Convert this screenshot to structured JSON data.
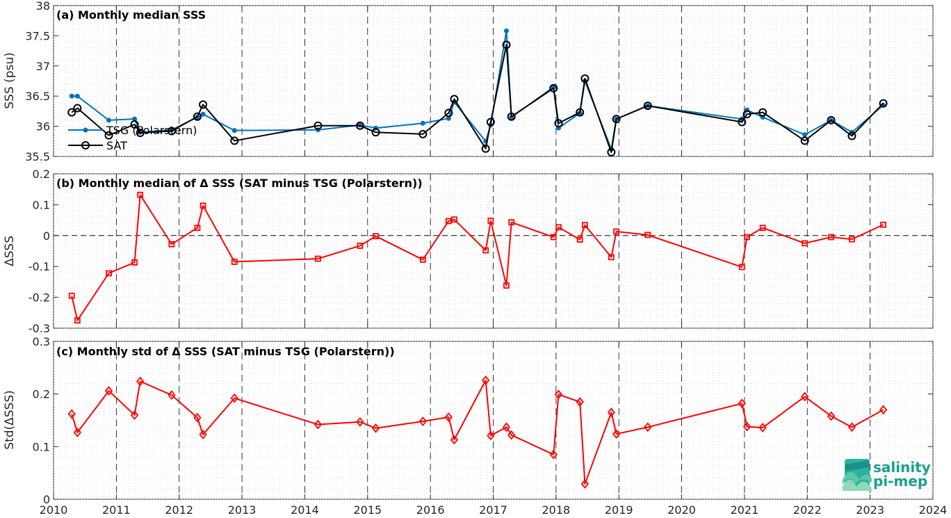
{
  "chart_data": [
    {
      "type": "line",
      "title": "(a) Monthly median SSS",
      "ylabel": "SSS (psu)",
      "xlim": [
        2010,
        2024
      ],
      "ylim": [
        35.5,
        38
      ],
      "yticks": [
        "35.5",
        "36",
        "36.5",
        "37",
        "37.5",
        "38"
      ],
      "grid": "dotted minor grid, dashed vertical year lines",
      "legend_placement": "left",
      "series": [
        {
          "name": "TSG (Polarstern)",
          "color": "#0072BD",
          "marker": "filled-dot",
          "x": [
            2010.29,
            2010.38,
            2010.88,
            2011.29,
            2011.38,
            2011.88,
            2012.29,
            2012.38,
            2012.88,
            2014.21,
            2014.88,
            2015.13,
            2015.88,
            2016.29,
            2016.38,
            2016.88,
            2016.96,
            2017.21,
            2017.29,
            2017.96,
            2018.04,
            2018.38,
            2018.46,
            2018.88,
            2018.96,
            2019.46,
            2020.96,
            2021.04,
            2021.29,
            2021.96,
            2022.38,
            2022.71,
            2023.21
          ],
          "values": [
            36.5,
            36.5,
            36.1,
            36.12,
            35.9,
            35.94,
            36.15,
            36.2,
            35.93,
            35.94,
            36.02,
            35.97,
            36.05,
            36.13,
            36.4,
            35.75,
            36.02,
            37.58,
            36.15,
            36.65,
            35.97,
            36.22,
            36.75,
            35.62,
            36.12,
            36.34,
            36.12,
            36.27,
            36.15,
            35.86,
            36.1,
            35.9,
            36.35
          ]
        },
        {
          "name": "SAT",
          "color": "#000000",
          "marker": "open-circle",
          "x": [
            2010.29,
            2010.38,
            2010.88,
            2011.29,
            2011.38,
            2011.88,
            2012.29,
            2012.38,
            2012.88,
            2014.21,
            2014.88,
            2015.13,
            2015.88,
            2016.29,
            2016.38,
            2016.88,
            2016.96,
            2017.21,
            2017.29,
            2017.96,
            2018.04,
            2018.38,
            2018.46,
            2018.88,
            2018.96,
            2019.46,
            2020.96,
            2021.04,
            2021.29,
            2021.96,
            2022.38,
            2022.71,
            2023.21
          ],
          "values": [
            36.23,
            36.3,
            35.85,
            36.03,
            35.89,
            35.92,
            36.16,
            36.36,
            35.76,
            36.01,
            36.01,
            35.9,
            35.87,
            36.22,
            36.45,
            35.63,
            36.07,
            37.35,
            36.16,
            36.63,
            36.05,
            36.23,
            36.79,
            35.57,
            36.12,
            36.34,
            36.07,
            36.2,
            36.23,
            35.76,
            36.1,
            35.84,
            36.38
          ]
        }
      ]
    },
    {
      "type": "line",
      "title": "(b) Monthly median of Δ SSS (SAT minus TSG (Polarstern))",
      "ylabel": "ΔSSS",
      "xlim": [
        2010,
        2024
      ],
      "ylim": [
        -0.3,
        0.2
      ],
      "yticks": [
        "-0.3",
        "-0.2",
        "-0.1",
        "0",
        "0.1",
        "0.2"
      ],
      "reference_line": 0,
      "series": [
        {
          "color": "#FF0000",
          "marker": "open-square",
          "x": [
            2010.29,
            2010.38,
            2010.88,
            2011.29,
            2011.38,
            2011.88,
            2012.29,
            2012.38,
            2012.88,
            2014.21,
            2014.88,
            2015.13,
            2015.88,
            2016.29,
            2016.38,
            2016.88,
            2016.96,
            2017.21,
            2017.29,
            2017.96,
            2018.04,
            2018.38,
            2018.46,
            2018.88,
            2018.96,
            2019.46,
            2020.96,
            2021.04,
            2021.29,
            2021.96,
            2022.38,
            2022.71,
            2023.21
          ],
          "values": [
            -0.195,
            -0.275,
            -0.122,
            -0.087,
            0.132,
            -0.028,
            0.025,
            0.097,
            -0.085,
            -0.075,
            -0.033,
            -0.002,
            -0.078,
            0.047,
            0.052,
            -0.048,
            0.048,
            -0.162,
            0.043,
            -0.005,
            0.027,
            -0.013,
            0.034,
            -0.07,
            0.013,
            0.002,
            -0.102,
            -0.005,
            0.025,
            -0.025,
            -0.005,
            -0.012,
            0.035
          ]
        }
      ]
    },
    {
      "type": "line",
      "title": "(c) Monthly std of Δ SSS (SAT minus TSG (Polarstern))",
      "ylabel": "Std(ΔSSS)",
      "xlabel": "",
      "xlim": [
        2010,
        2024
      ],
      "ylim": [
        0,
        0.3
      ],
      "yticks": [
        "0",
        "0.1",
        "0.2",
        "0.3"
      ],
      "xticks": [
        "2010",
        "2011",
        "2012",
        "2013",
        "2014",
        "2015",
        "2016",
        "2017",
        "2018",
        "2019",
        "2020",
        "2021",
        "2022",
        "2023",
        "2024"
      ],
      "series": [
        {
          "color": "#FF0000",
          "marker": "open-diamond",
          "x": [
            2010.29,
            2010.38,
            2010.88,
            2011.29,
            2011.38,
            2011.88,
            2012.29,
            2012.38,
            2012.88,
            2014.21,
            2014.88,
            2015.13,
            2015.88,
            2016.29,
            2016.38,
            2016.88,
            2016.96,
            2017.21,
            2017.29,
            2017.96,
            2018.04,
            2018.38,
            2018.46,
            2018.88,
            2018.96,
            2019.46,
            2020.96,
            2021.04,
            2021.29,
            2021.96,
            2022.38,
            2022.71,
            2023.21
          ],
          "values": [
            0.162,
            0.127,
            0.206,
            0.16,
            0.224,
            0.198,
            0.155,
            0.123,
            0.192,
            0.142,
            0.147,
            0.135,
            0.148,
            0.156,
            0.113,
            0.226,
            0.121,
            0.137,
            0.122,
            0.085,
            0.199,
            0.185,
            0.029,
            0.165,
            0.124,
            0.137,
            0.182,
            0.138,
            0.136,
            0.195,
            0.158,
            0.137,
            0.17
          ]
        }
      ]
    }
  ],
  "logo": {
    "line1": "salinity",
    "line2": "pi-mep"
  }
}
